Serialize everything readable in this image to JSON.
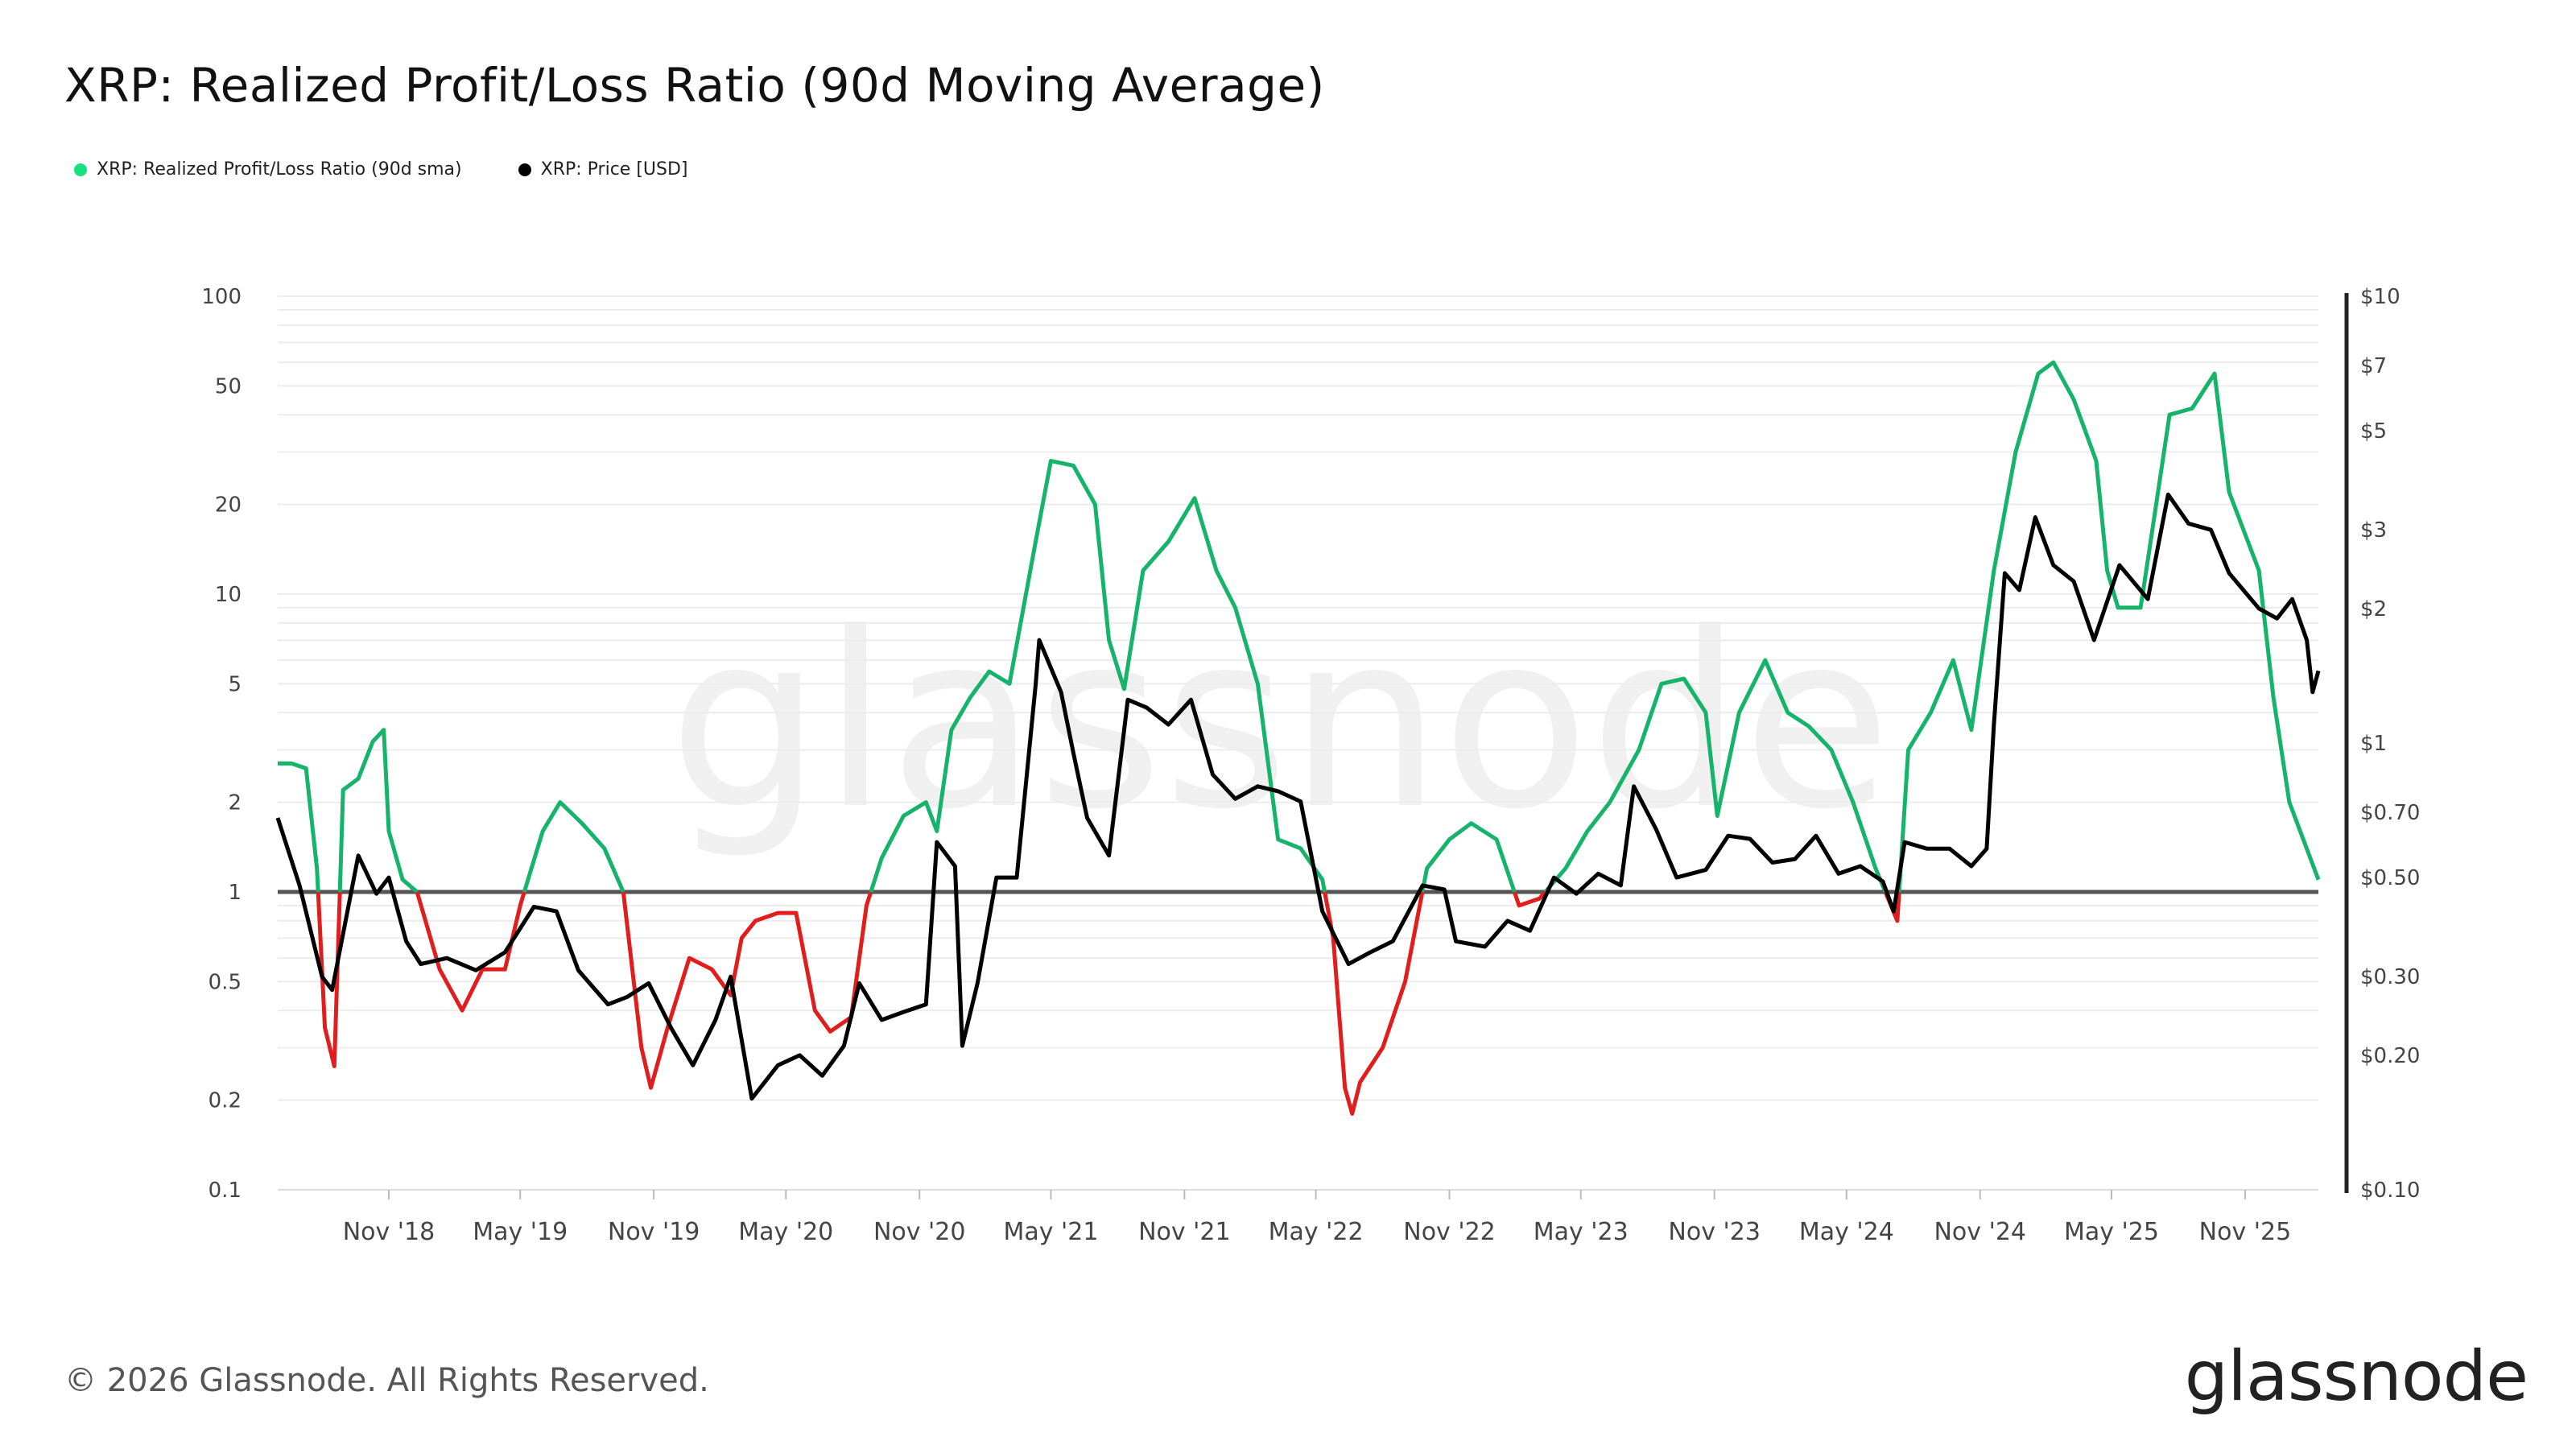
{
  "title": "XRP: Realized Profit/Loss Ratio (90d Moving Average)",
  "footer": "© 2026 Glassnode. All Rights Reserved.",
  "brand": "glassnode",
  "watermark": "glassnode",
  "colors": {
    "profit": "#16b36b",
    "loss": "#e01e1e",
    "price": "#000000",
    "baseline": "#555555"
  },
  "chart_data": {
    "type": "line",
    "title": "XRP: Realized Profit/Loss Ratio (90d Moving Average)",
    "legend": [
      {
        "name": "XRP: Realized Profit/Loss Ratio (90d sma)",
        "color": "#16b36b"
      },
      {
        "name": "XRP: Price [USD]",
        "color": "#000000"
      }
    ],
    "x_ticks": [
      "Nov '18",
      "May '19",
      "Nov '19",
      "May '20",
      "Nov '20",
      "May '21",
      "Nov '21",
      "May '22",
      "Nov '22",
      "May '23",
      "Nov '23",
      "May '24",
      "Nov '24",
      "May '25",
      "Nov '25"
    ],
    "x_range": [
      "2018-06-01",
      "2026-02-10"
    ],
    "left_axis": {
      "scale": "log",
      "range": [
        0.1,
        100
      ],
      "ticks": [
        {
          "v": 100,
          "label": "100"
        },
        {
          "v": 50,
          "label": "50"
        },
        {
          "v": 20,
          "label": "20"
        },
        {
          "v": 10,
          "label": "10"
        },
        {
          "v": 5,
          "label": "5"
        },
        {
          "v": 2,
          "label": "2"
        },
        {
          "v": 1,
          "label": "1"
        },
        {
          "v": 0.5,
          "label": "0.5"
        },
        {
          "v": 0.2,
          "label": "0.2"
        },
        {
          "v": 0.1,
          "label": "0.1"
        }
      ]
    },
    "right_axis": {
      "scale": "log",
      "range": [
        0.1,
        10
      ],
      "ticks": [
        {
          "v": 10,
          "label": "$10"
        },
        {
          "v": 7,
          "label": "$7"
        },
        {
          "v": 5,
          "label": "$5"
        },
        {
          "v": 3,
          "label": "$3"
        },
        {
          "v": 2,
          "label": "$2"
        },
        {
          "v": 1,
          "label": "$1"
        },
        {
          "v": 0.7,
          "label": "$0.70"
        },
        {
          "v": 0.5,
          "label": "$0.50"
        },
        {
          "v": 0.3,
          "label": "$0.30"
        },
        {
          "v": 0.2,
          "label": "$0.20"
        },
        {
          "v": 0.1,
          "label": "$0.10"
        }
      ]
    },
    "baseline": 1,
    "series": [
      {
        "name": "XRP: Realized Profit/Loss Ratio (90d sma)",
        "axis": "left",
        "points": [
          [
            "2018-06-01",
            2.7
          ],
          [
            "2018-06-20",
            2.7
          ],
          [
            "2018-07-10",
            2.6
          ],
          [
            "2018-07-25",
            1.2
          ],
          [
            "2018-08-05",
            0.35
          ],
          [
            "2018-08-18",
            0.26
          ],
          [
            "2018-08-30",
            2.2
          ],
          [
            "2018-09-20",
            2.4
          ],
          [
            "2018-10-10",
            3.2
          ],
          [
            "2018-10-25",
            3.5
          ],
          [
            "2018-11-01",
            1.6
          ],
          [
            "2018-11-20",
            1.1
          ],
          [
            "2018-12-10",
            1.0
          ],
          [
            "2019-01-10",
            0.55
          ],
          [
            "2019-02-10",
            0.4
          ],
          [
            "2019-03-10",
            0.55
          ],
          [
            "2019-04-10",
            0.55
          ],
          [
            "2019-05-01",
            0.9
          ],
          [
            "2019-06-01",
            1.6
          ],
          [
            "2019-06-25",
            2.0
          ],
          [
            "2019-07-25",
            1.7
          ],
          [
            "2019-08-25",
            1.4
          ],
          [
            "2019-09-20",
            1.0
          ],
          [
            "2019-10-15",
            0.3
          ],
          [
            "2019-10-28",
            0.22
          ],
          [
            "2019-11-20",
            0.35
          ],
          [
            "2019-12-20",
            0.6
          ],
          [
            "2020-01-20",
            0.55
          ],
          [
            "2020-02-15",
            0.45
          ],
          [
            "2020-03-01",
            0.7
          ],
          [
            "2020-03-20",
            0.8
          ],
          [
            "2020-04-20",
            0.85
          ],
          [
            "2020-05-15",
            0.85
          ],
          [
            "2020-06-10",
            0.4
          ],
          [
            "2020-07-01",
            0.34
          ],
          [
            "2020-07-30",
            0.38
          ],
          [
            "2020-08-20",
            0.9
          ],
          [
            "2020-09-10",
            1.3
          ],
          [
            "2020-10-10",
            1.8
          ],
          [
            "2020-11-10",
            2.0
          ],
          [
            "2020-11-25",
            1.6
          ],
          [
            "2020-12-15",
            3.5
          ],
          [
            "2021-01-10",
            4.5
          ],
          [
            "2021-02-05",
            5.5
          ],
          [
            "2021-03-05",
            5.0
          ],
          [
            "2021-04-10",
            15.0
          ],
          [
            "2021-05-01",
            28.0
          ],
          [
            "2021-06-01",
            27.0
          ],
          [
            "2021-07-01",
            20.0
          ],
          [
            "2021-07-20",
            7.0
          ],
          [
            "2021-08-10",
            4.8
          ],
          [
            "2021-09-05",
            12.0
          ],
          [
            "2021-10-10",
            15.0
          ],
          [
            "2021-11-15",
            21.0
          ],
          [
            "2021-12-15",
            12.0
          ],
          [
            "2022-01-10",
            9.0
          ],
          [
            "2022-02-10",
            5.0
          ],
          [
            "2022-03-10",
            1.5
          ],
          [
            "2022-04-10",
            1.4
          ],
          [
            "2022-05-10",
            1.1
          ],
          [
            "2022-05-25",
            0.7
          ],
          [
            "2022-06-10",
            0.22
          ],
          [
            "2022-06-20",
            0.18
          ],
          [
            "2022-07-01",
            0.23
          ],
          [
            "2022-08-01",
            0.3
          ],
          [
            "2022-09-01",
            0.5
          ],
          [
            "2022-10-01",
            1.2
          ],
          [
            "2022-11-01",
            1.5
          ],
          [
            "2022-12-01",
            1.7
          ],
          [
            "2023-01-05",
            1.5
          ],
          [
            "2023-02-05",
            0.9
          ],
          [
            "2023-03-05",
            0.95
          ],
          [
            "2023-04-10",
            1.2
          ],
          [
            "2023-05-10",
            1.6
          ],
          [
            "2023-06-10",
            2.0
          ],
          [
            "2023-07-20",
            3.0
          ],
          [
            "2023-08-20",
            5.0
          ],
          [
            "2023-09-20",
            5.2
          ],
          [
            "2023-10-20",
            4.0
          ],
          [
            "2023-11-05",
            1.8
          ],
          [
            "2023-12-05",
            4.0
          ],
          [
            "2024-01-10",
            6.0
          ],
          [
            "2024-02-10",
            4.0
          ],
          [
            "2024-03-10",
            3.6
          ],
          [
            "2024-04-10",
            3.0
          ],
          [
            "2024-05-10",
            2.0
          ],
          [
            "2024-06-10",
            1.2
          ],
          [
            "2024-07-10",
            0.8
          ],
          [
            "2024-07-25",
            3.0
          ],
          [
            "2024-08-25",
            4.0
          ],
          [
            "2024-09-25",
            6.0
          ],
          [
            "2024-10-20",
            3.5
          ],
          [
            "2024-11-20",
            12.0
          ],
          [
            "2024-12-20",
            30.0
          ],
          [
            "2025-01-20",
            55.0
          ],
          [
            "2025-02-10",
            60.0
          ],
          [
            "2025-03-10",
            45.0
          ],
          [
            "2025-04-10",
            28.0
          ],
          [
            "2025-04-25",
            12.0
          ],
          [
            "2025-05-10",
            9.0
          ],
          [
            "2025-06-10",
            9.0
          ],
          [
            "2025-06-20",
            13.0
          ],
          [
            "2025-07-20",
            40.0
          ],
          [
            "2025-08-20",
            42.0
          ],
          [
            "2025-09-20",
            55.0
          ],
          [
            "2025-10-10",
            22.0
          ],
          [
            "2025-11-20",
            12.0
          ],
          [
            "2025-12-10",
            4.5
          ],
          [
            "2026-01-01",
            2.0
          ],
          [
            "2026-02-10",
            1.1
          ]
        ]
      },
      {
        "name": "XRP: Price [USD]",
        "axis": "right",
        "points": [
          [
            "2018-06-01",
            0.68
          ],
          [
            "2018-07-01",
            0.48
          ],
          [
            "2018-08-01",
            0.3
          ],
          [
            "2018-08-15",
            0.28
          ],
          [
            "2018-09-20",
            0.56
          ],
          [
            "2018-10-15",
            0.46
          ],
          [
            "2018-11-01",
            0.5
          ],
          [
            "2018-11-25",
            0.36
          ],
          [
            "2018-12-15",
            0.32
          ],
          [
            "2019-01-20",
            0.33
          ],
          [
            "2019-03-01",
            0.31
          ],
          [
            "2019-04-10",
            0.34
          ],
          [
            "2019-05-20",
            0.43
          ],
          [
            "2019-06-20",
            0.42
          ],
          [
            "2019-07-20",
            0.31
          ],
          [
            "2019-08-30",
            0.26
          ],
          [
            "2019-09-25",
            0.27
          ],
          [
            "2019-10-25",
            0.29
          ],
          [
            "2019-11-25",
            0.23
          ],
          [
            "2019-12-25",
            0.19
          ],
          [
            "2020-01-25",
            0.24
          ],
          [
            "2020-02-15",
            0.3
          ],
          [
            "2020-03-15",
            0.16
          ],
          [
            "2020-04-20",
            0.19
          ],
          [
            "2020-05-20",
            0.2
          ],
          [
            "2020-06-20",
            0.18
          ],
          [
            "2020-07-20",
            0.21
          ],
          [
            "2020-08-10",
            0.29
          ],
          [
            "2020-09-10",
            0.24
          ],
          [
            "2020-10-10",
            0.25
          ],
          [
            "2020-11-10",
            0.26
          ],
          [
            "2020-11-25",
            0.6
          ],
          [
            "2020-12-20",
            0.53
          ],
          [
            "2020-12-30",
            0.21
          ],
          [
            "2021-01-20",
            0.29
          ],
          [
            "2021-02-15",
            0.5
          ],
          [
            "2021-03-15",
            0.5
          ],
          [
            "2021-04-10",
            1.35
          ],
          [
            "2021-04-15",
            1.7
          ],
          [
            "2021-05-15",
            1.3
          ],
          [
            "2021-06-01",
            0.95
          ],
          [
            "2021-06-20",
            0.68
          ],
          [
            "2021-07-20",
            0.56
          ],
          [
            "2021-08-15",
            1.25
          ],
          [
            "2021-09-10",
            1.2
          ],
          [
            "2021-10-10",
            1.1
          ],
          [
            "2021-11-10",
            1.25
          ],
          [
            "2021-12-10",
            0.85
          ],
          [
            "2022-01-10",
            0.75
          ],
          [
            "2022-02-10",
            0.8
          ],
          [
            "2022-03-10",
            0.78
          ],
          [
            "2022-04-10",
            0.74
          ],
          [
            "2022-05-10",
            0.42
          ],
          [
            "2022-06-15",
            0.32
          ],
          [
            "2022-07-15",
            0.34
          ],
          [
            "2022-08-15",
            0.36
          ],
          [
            "2022-09-25",
            0.48
          ],
          [
            "2022-10-25",
            0.47
          ],
          [
            "2022-11-10",
            0.36
          ],
          [
            "2022-12-20",
            0.35
          ],
          [
            "2023-01-20",
            0.4
          ],
          [
            "2023-02-20",
            0.38
          ],
          [
            "2023-03-25",
            0.5
          ],
          [
            "2023-04-25",
            0.46
          ],
          [
            "2023-05-25",
            0.51
          ],
          [
            "2023-06-25",
            0.48
          ],
          [
            "2023-07-13",
            0.8
          ],
          [
            "2023-08-13",
            0.64
          ],
          [
            "2023-09-10",
            0.5
          ],
          [
            "2023-10-20",
            0.52
          ],
          [
            "2023-11-20",
            0.62
          ],
          [
            "2023-12-20",
            0.61
          ],
          [
            "2024-01-20",
            0.54
          ],
          [
            "2024-02-20",
            0.55
          ],
          [
            "2024-03-20",
            0.62
          ],
          [
            "2024-04-20",
            0.51
          ],
          [
            "2024-05-20",
            0.53
          ],
          [
            "2024-06-20",
            0.49
          ],
          [
            "2024-07-05",
            0.42
          ],
          [
            "2024-07-20",
            0.6
          ],
          [
            "2024-08-20",
            0.58
          ],
          [
            "2024-09-20",
            0.58
          ],
          [
            "2024-10-20",
            0.53
          ],
          [
            "2024-11-10",
            0.58
          ],
          [
            "2024-11-20",
            1.1
          ],
          [
            "2024-12-05",
            2.4
          ],
          [
            "2024-12-25",
            2.2
          ],
          [
            "2025-01-16",
            3.2
          ],
          [
            "2025-02-10",
            2.5
          ],
          [
            "2025-03-10",
            2.3
          ],
          [
            "2025-04-07",
            1.7
          ],
          [
            "2025-05-12",
            2.5
          ],
          [
            "2025-06-20",
            2.1
          ],
          [
            "2025-07-18",
            3.6
          ],
          [
            "2025-08-15",
            3.1
          ],
          [
            "2025-09-15",
            3.0
          ],
          [
            "2025-10-10",
            2.4
          ],
          [
            "2025-11-20",
            2.0
          ],
          [
            "2025-12-15",
            1.9
          ],
          [
            "2026-01-05",
            2.1
          ],
          [
            "2026-01-25",
            1.7
          ],
          [
            "2026-02-02",
            1.3
          ],
          [
            "2026-02-10",
            1.45
          ]
        ]
      }
    ]
  }
}
